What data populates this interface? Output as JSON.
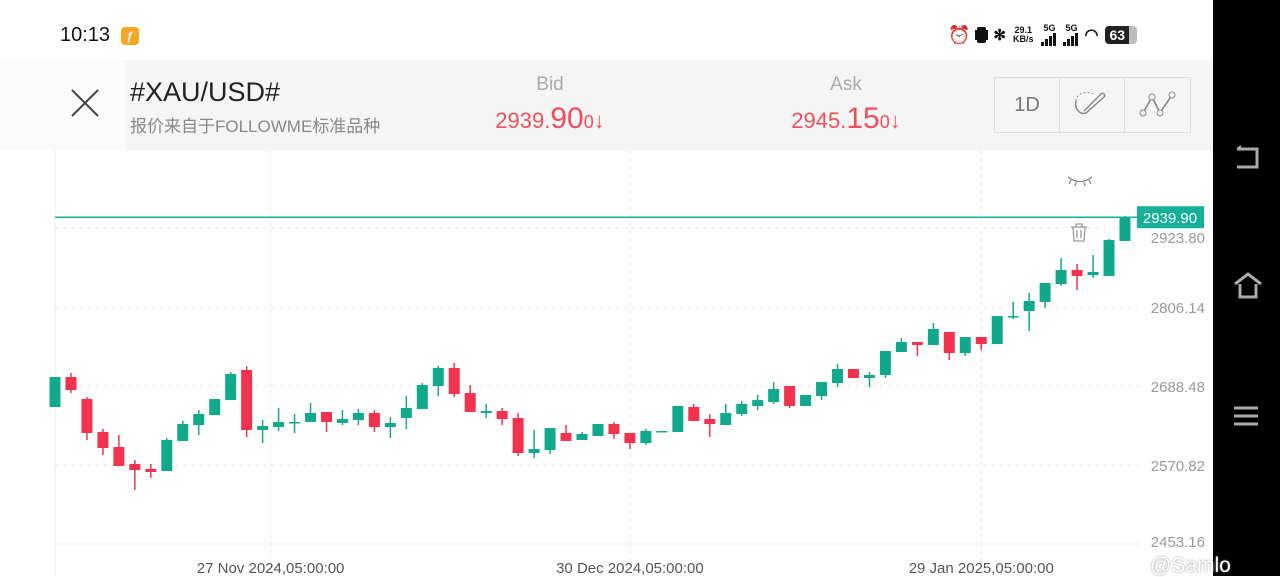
{
  "status_bar": {
    "time": "10:13",
    "app_badge": "ƒ",
    "net_speed_value": "29.1",
    "net_speed_unit": "KB/s",
    "sim1": "5G",
    "sim2": "5G",
    "battery": "63"
  },
  "header": {
    "symbol": "#XAU/USD#",
    "source": "报价来自于FOLLOWME标准品种",
    "bid": {
      "label": "Bid",
      "prefix": "2939.",
      "big": "90",
      "suffix": "0",
      "arrow": "↓"
    },
    "ask": {
      "label": "Ask",
      "prefix": "2945.",
      "big": "15",
      "suffix": "0",
      "arrow": "↓"
    },
    "timeframe": "1D"
  },
  "colors": {
    "up": "#12a98a",
    "down": "#f2334f",
    "price_line": "#15b097"
  },
  "watermark": "@Samlo",
  "chart_data": {
    "type": "candlestick",
    "symbol": "XAU/USD",
    "interval": "1D",
    "current_price": "2939.90",
    "y_ticks": [
      "2923.80",
      "2806.14",
      "2688.48",
      "2570.82",
      "2453.16"
    ],
    "ylim": [
      2450,
      3000
    ],
    "x_labels": [
      {
        "label": "27 Nov 2024,05:00:00",
        "index": 13.5
      },
      {
        "label": "30 Dec 2024,05:00:00",
        "index": 36
      },
      {
        "label": "29 Jan 2025,05:00:00",
        "index": 58
      }
    ],
    "ohlc": [
      [
        2657.2,
        2701.9,
        2657.2,
        2701.9
      ],
      [
        2701.9,
        2707.8,
        2678.1,
        2682.5
      ],
      [
        2669.1,
        2672.1,
        2608.1,
        2618.5
      ],
      [
        2620.0,
        2624.5,
        2585.7,
        2596.1
      ],
      [
        2597.6,
        2615.5,
        2569.3,
        2569.3
      ],
      [
        2572.3,
        2578.3,
        2533.6,
        2563.4
      ],
      [
        2564.9,
        2572.3,
        2551.5,
        2560.4
      ],
      [
        2561.9,
        2611.1,
        2561.9,
        2608.1
      ],
      [
        2606.6,
        2636.4,
        2606.6,
        2631.9
      ],
      [
        2630.4,
        2652.7,
        2615.5,
        2646.8
      ],
      [
        2645.3,
        2669.1,
        2645.3,
        2669.1
      ],
      [
        2667.6,
        2709.3,
        2667.6,
        2706.4
      ],
      [
        2712.3,
        2718.3,
        2612.6,
        2623.0
      ],
      [
        2623.0,
        2637.9,
        2603.6,
        2628.9
      ],
      [
        2627.4,
        2655.7,
        2621.5,
        2634.9
      ],
      [
        2633.4,
        2646.8,
        2618.5,
        2634.9
      ],
      [
        2634.9,
        2663.2,
        2634.9,
        2648.3
      ],
      [
        2649.8,
        2649.8,
        2620.0,
        2634.9
      ],
      [
        2633.4,
        2652.7,
        2630.4,
        2639.3
      ],
      [
        2637.9,
        2654.2,
        2630.4,
        2648.3
      ],
      [
        2648.3,
        2652.7,
        2620.0,
        2627.4
      ],
      [
        2627.4,
        2642.3,
        2611.1,
        2633.4
      ],
      [
        2640.8,
        2673.6,
        2624.5,
        2655.7
      ],
      [
        2654.2,
        2692.9,
        2654.2,
        2690.0
      ],
      [
        2688.5,
        2718.3,
        2673.6,
        2715.3
      ],
      [
        2715.3,
        2722.7,
        2672.1,
        2676.6
      ],
      [
        2678.1,
        2690.0,
        2649.8,
        2649.8
      ],
      [
        2648.3,
        2661.7,
        2640.8,
        2651.2
      ],
      [
        2651.2,
        2655.7,
        2630.4,
        2639.3
      ],
      [
        2640.8,
        2648.3,
        2584.2,
        2588.7
      ],
      [
        2588.7,
        2623.0,
        2581.2,
        2594.6
      ],
      [
        2593.1,
        2625.9,
        2587.2,
        2625.9
      ],
      [
        2618.5,
        2630.4,
        2606.6,
        2606.6
      ],
      [
        2608.1,
        2620.0,
        2608.1,
        2617.0
      ],
      [
        2614.0,
        2631.9,
        2614.0,
        2631.9
      ],
      [
        2631.9,
        2634.9,
        2609.6,
        2617.0
      ],
      [
        2618.5,
        2618.5,
        2594.6,
        2603.6
      ],
      [
        2603.6,
        2624.5,
        2600.6,
        2621.5
      ],
      [
        2620.0,
        2621.5,
        2620.0,
        2621.5
      ],
      [
        2620.0,
        2658.7,
        2620.0,
        2658.7
      ],
      [
        2657.2,
        2661.7,
        2636.4,
        2636.4
      ],
      [
        2639.3,
        2646.8,
        2612.6,
        2631.9
      ],
      [
        2630.4,
        2661.7,
        2630.4,
        2648.3
      ],
      [
        2646.8,
        2666.1,
        2643.8,
        2661.7
      ],
      [
        2658.7,
        2675.1,
        2652.7,
        2667.6
      ],
      [
        2664.7,
        2694.4,
        2661.7,
        2684.0
      ],
      [
        2688.5,
        2688.5,
        2655.7,
        2658.7
      ],
      [
        2658.7,
        2675.1,
        2658.7,
        2675.1
      ],
      [
        2673.6,
        2694.4,
        2667.6,
        2694.4
      ],
      [
        2692.9,
        2721.3,
        2687.0,
        2713.8
      ],
      [
        2713.8,
        2713.8,
        2700.4,
        2700.4
      ],
      [
        2700.4,
        2709.3,
        2687.0,
        2704.9
      ],
      [
        2704.9,
        2740.6,
        2700.4,
        2740.6
      ],
      [
        2739.1,
        2760.0,
        2739.1,
        2754.0
      ],
      [
        2754.0,
        2754.0,
        2733.2,
        2749.6
      ],
      [
        2749.6,
        2782.3,
        2749.6,
        2773.4
      ],
      [
        2768.9,
        2768.9,
        2727.2,
        2737.6
      ],
      [
        2737.6,
        2761.5,
        2733.2,
        2761.5
      ],
      [
        2761.5,
        2761.5,
        2742.1,
        2751.0
      ],
      [
        2751.0,
        2792.7,
        2751.0,
        2792.7
      ],
      [
        2791.3,
        2813.6,
        2788.3,
        2792.7
      ],
      [
        2800.2,
        2827.0,
        2770.4,
        2815.1
      ],
      [
        2813.6,
        2841.9,
        2804.7,
        2841.9
      ],
      [
        2840.4,
        2879.1,
        2837.4,
        2861.3
      ],
      [
        2861.3,
        2870.2,
        2831.5,
        2852.3
      ],
      [
        2853.8,
        2883.6,
        2849.4,
        2858.3
      ],
      [
        2852.3,
        2907.4,
        2852.3,
        2905.9
      ],
      [
        2904.5,
        2941.7,
        2904.5,
        2939.9
      ]
    ]
  }
}
